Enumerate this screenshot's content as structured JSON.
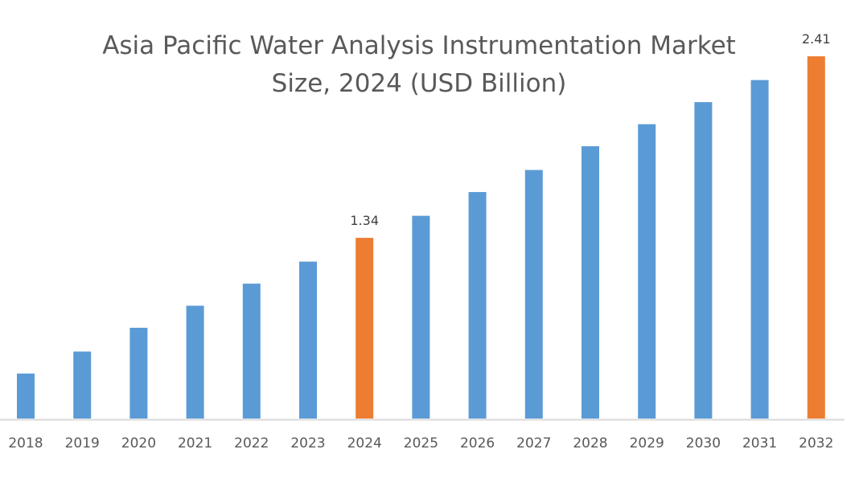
{
  "chart_data": {
    "type": "bar",
    "title_lines": [
      "Asia Pacific Water Analysis Instrumentation Market",
      "Size, 2024 (USD Billion)"
    ],
    "xlabel": "",
    "ylabel": "",
    "categories": [
      "2018",
      "2019",
      "2020",
      "2021",
      "2022",
      "2023",
      "2024",
      "2025",
      "2026",
      "2027",
      "2028",
      "2029",
      "2030",
      "2031",
      "2032"
    ],
    "values": [
      0.54,
      0.67,
      0.81,
      0.94,
      1.07,
      1.2,
      1.34,
      1.47,
      1.61,
      1.74,
      1.88,
      2.01,
      2.14,
      2.27,
      2.41
    ],
    "data_labels": {
      "2024": "1.34",
      "2032": "2.41"
    },
    "highlighted": [
      "2024",
      "2032"
    ],
    "grid": false,
    "legend": "none",
    "colors": {
      "bar": "#5b9bd5",
      "highlight": "#ed7d31",
      "axis": "#d9d9d9",
      "text": "#595959"
    }
  }
}
